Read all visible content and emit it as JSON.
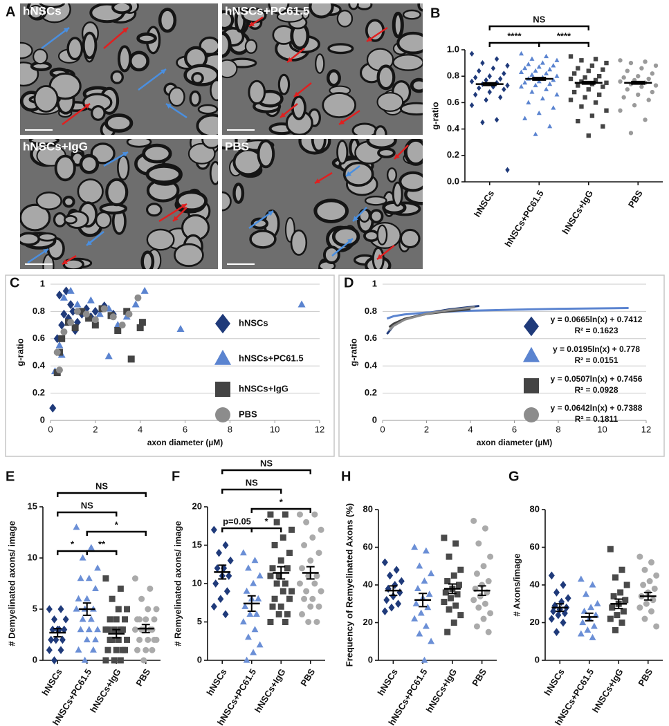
{
  "panel_a": {
    "label": "A",
    "images": [
      {
        "label": "hNSCs"
      },
      {
        "label": "hNSCs+PC61.5"
      },
      {
        "label": "hNSCs+IgG"
      },
      {
        "label": "PBS"
      }
    ]
  },
  "chart_data": [
    {
      "type": "dotplot",
      "panel": "B",
      "ylabel": "g-ratio",
      "ylim": [
        0,
        1.0
      ],
      "yticks": [
        {
          "value": 0,
          "label": "0.0"
        },
        0.2,
        0.4,
        0.6,
        0.8,
        {
          "value": 1.0,
          "label": "1.0"
        }
      ],
      "groups": [
        {
          "name": "hNSCs",
          "color": "#1f3a7a",
          "marker": "diamond",
          "mean": 0.74,
          "sem": 0.01,
          "values": [
            0.97,
            0.93,
            0.9,
            0.88,
            0.86,
            0.84,
            0.82,
            0.8,
            0.79,
            0.78,
            0.77,
            0.76,
            0.75,
            0.74,
            0.73,
            0.72,
            0.71,
            0.7,
            0.68,
            0.66,
            0.64,
            0.62,
            0.58,
            0.47,
            0.45,
            0.09
          ]
        },
        {
          "name": "hNSCs+PC61.5",
          "color": "#5b84d0",
          "marker": "triangle",
          "mean": 0.78,
          "sem": 0.01,
          "values": [
            0.97,
            0.95,
            0.93,
            0.92,
            0.9,
            0.89,
            0.88,
            0.87,
            0.86,
            0.85,
            0.84,
            0.83,
            0.82,
            0.81,
            0.8,
            0.79,
            0.78,
            0.77,
            0.76,
            0.75,
            0.74,
            0.73,
            0.72,
            0.7,
            0.68,
            0.66,
            0.63,
            0.6,
            0.56,
            0.52,
            0.48,
            0.42,
            0.36
          ]
        },
        {
          "name": "hNSCs+IgG",
          "color": "#444444",
          "marker": "square",
          "mean": 0.75,
          "sem": 0.01,
          "values": [
            0.95,
            0.93,
            0.92,
            0.9,
            0.88,
            0.86,
            0.85,
            0.84,
            0.82,
            0.8,
            0.79,
            0.78,
            0.77,
            0.76,
            0.75,
            0.74,
            0.73,
            0.72,
            0.7,
            0.68,
            0.66,
            0.64,
            0.62,
            0.6,
            0.57,
            0.54,
            0.5,
            0.46,
            0.42,
            0.35
          ]
        },
        {
          "name": "PBS",
          "color": "#9a9a9a",
          "marker": "circle",
          "mean": 0.75,
          "sem": 0.01,
          "values": [
            0.92,
            0.91,
            0.9,
            0.88,
            0.86,
            0.84,
            0.82,
            0.8,
            0.79,
            0.78,
            0.77,
            0.76,
            0.75,
            0.74,
            0.73,
            0.72,
            0.7,
            0.68,
            0.66,
            0.64,
            0.62,
            0.58,
            0.54,
            0.47,
            0.37
          ]
        }
      ],
      "brackets": [
        {
          "from": "hNSCs",
          "to": "hNSCs+PC61.5",
          "label": "****"
        },
        {
          "from": "hNSCs+PC61.5",
          "to": "hNSCs+IgG",
          "label": "****"
        },
        {
          "from": "hNSCs",
          "to": "hNSCs+IgG",
          "label": "NS"
        }
      ]
    },
    {
      "type": "scatter",
      "panel": "C",
      "xlabel": "axon diameter (µM)",
      "ylabel": "g-ratio",
      "xlim": [
        0,
        12
      ],
      "xticks": [
        0,
        2,
        4,
        6,
        8,
        10,
        12
      ],
      "ylim": [
        0,
        1
      ],
      "yticks": [
        0,
        0.2,
        0.4,
        0.6,
        0.8,
        1
      ],
      "grid": true,
      "series": [
        {
          "name": "hNSCs",
          "color": "#1f3a7a",
          "marker": "diamond",
          "x": [
            0.1,
            0.3,
            0.5,
            0.6,
            0.8,
            0.9,
            1.0,
            1.2,
            1.4,
            1.6,
            1.8,
            2.0,
            2.4,
            2.8,
            0.4,
            0.7,
            1.1
          ],
          "values": [
            0.09,
            0.6,
            0.7,
            0.78,
            0.75,
            0.85,
            0.8,
            0.72,
            0.78,
            0.82,
            0.76,
            0.8,
            0.84,
            0.78,
            0.92,
            0.95,
            0.66
          ]
        },
        {
          "name": "hNSCs+PC61.5",
          "color": "#5b84d0",
          "marker": "triangle",
          "x": [
            0.2,
            0.4,
            0.6,
            0.9,
            1.2,
            1.5,
            1.8,
            2.2,
            2.6,
            3.0,
            3.4,
            3.8,
            4.2,
            5.8,
            11.2,
            0.5,
            2.6
          ],
          "values": [
            0.36,
            0.55,
            0.9,
            0.95,
            0.85,
            0.8,
            0.88,
            0.78,
            0.82,
            0.7,
            0.76,
            0.85,
            0.95,
            0.67,
            0.85,
            0.48,
            0.47
          ]
        },
        {
          "name": "hNSCs+IgG",
          "color": "#444444",
          "marker": "square",
          "x": [
            0.3,
            0.5,
            0.8,
            1.1,
            1.4,
            1.7,
            2.0,
            2.3,
            2.7,
            3.0,
            3.4,
            3.6,
            4.0,
            4.1,
            0.4
          ],
          "values": [
            0.35,
            0.6,
            0.72,
            0.68,
            0.8,
            0.75,
            0.7,
            0.82,
            0.77,
            0.66,
            0.8,
            0.45,
            0.68,
            0.72,
            0.5
          ]
        },
        {
          "name": "PBS",
          "color": "#8c8c8c",
          "marker": "circle",
          "x": [
            0.3,
            0.6,
            0.9,
            1.2,
            1.6,
            2.0,
            2.4,
            2.8,
            3.2,
            3.5,
            3.9,
            0.4
          ],
          "values": [
            0.5,
            0.65,
            0.72,
            0.8,
            0.78,
            0.74,
            0.82,
            0.76,
            0.7,
            0.78,
            0.9,
            0.37
          ]
        }
      ]
    },
    {
      "type": "line",
      "panel": "D",
      "xlabel": "axon diameter (µM)",
      "ylabel": "g-ratio",
      "xlim": [
        0,
        12
      ],
      "xticks": [
        0,
        2,
        4,
        6,
        8,
        10,
        12
      ],
      "ylim": [
        0,
        1
      ],
      "yticks": [
        0,
        0.2,
        0.4,
        0.6,
        0.8,
        1
      ],
      "grid": true,
      "series": [
        {
          "color": "#1f3a7a",
          "marker": "diamond",
          "equation": "y = 0.0665ln(x) + 0.7412",
          "r2": "R² = 0.1623",
          "x": [
            0.2,
            0.5,
            1,
            2,
            3,
            4.4
          ],
          "values": [
            0.634,
            0.695,
            0.741,
            0.787,
            0.814,
            0.84
          ]
        },
        {
          "color": "#5b84d0",
          "marker": "triangle",
          "equation": "y = 0.0195ln(x) + 0.778",
          "r2": "R² = 0.0151",
          "x": [
            0.2,
            0.5,
            1,
            2,
            4,
            6,
            8,
            11.2
          ],
          "values": [
            0.747,
            0.765,
            0.778,
            0.792,
            0.805,
            0.813,
            0.819,
            0.825
          ]
        },
        {
          "color": "#444444",
          "marker": "square",
          "equation": "y = 0.0507ln(x) + 0.7456",
          "r2": "R² = 0.0928",
          "x": [
            0.3,
            0.5,
            1,
            2,
            3,
            4
          ],
          "values": [
            0.685,
            0.71,
            0.746,
            0.781,
            0.801,
            0.816
          ]
        },
        {
          "color": "#8c8c8c",
          "marker": "circle",
          "equation": "y = 0.0642ln(x) + 0.7388",
          "r2": "R² = 0.1811",
          "x": [
            0.3,
            0.5,
            1,
            2,
            3,
            4.2
          ],
          "values": [
            0.662,
            0.694,
            0.739,
            0.783,
            0.809,
            0.831
          ]
        }
      ]
    },
    {
      "type": "dotplot",
      "panel": "E",
      "ylabel": "# Demyelinated axons/ image",
      "ylim": [
        0,
        15
      ],
      "yticks": [
        0,
        5,
        10,
        15
      ],
      "groups": [
        {
          "name": "hNSCs",
          "color": "#1f3a7a",
          "marker": "diamond",
          "mean": 2.7,
          "sem": 0.4,
          "values": [
            5,
            5,
            4,
            4,
            3,
            3,
            3,
            3,
            2,
            2,
            2,
            1,
            1,
            0
          ]
        },
        {
          "name": "hNSCs+PC61.5",
          "color": "#6b8fd6",
          "marker": "triangle",
          "mean": 5.0,
          "sem": 0.6,
          "values": [
            13,
            11,
            10,
            9,
            8,
            8,
            7,
            6,
            6,
            5,
            5,
            5,
            4,
            4,
            3,
            3,
            3,
            2,
            2,
            1,
            1,
            0
          ]
        },
        {
          "name": "hNSCs+IgG",
          "color": "#4a4a4a",
          "marker": "square",
          "mean": 2.6,
          "sem": 0.4,
          "values": [
            8,
            7,
            6,
            5,
            5,
            4,
            4,
            4,
            3,
            3,
            3,
            3,
            3,
            2,
            2,
            2,
            2,
            1,
            1,
            1,
            1,
            0,
            0,
            0
          ]
        },
        {
          "name": "PBS",
          "color": "#aaaaaa",
          "marker": "circle",
          "mean": 3.1,
          "sem": 0.4,
          "values": [
            8,
            7,
            6,
            5,
            5,
            4,
            4,
            4,
            4,
            3,
            3,
            3,
            3,
            3,
            2,
            2,
            2,
            2,
            1,
            1,
            1,
            0
          ]
        }
      ],
      "brackets": [
        {
          "from": "hNSCs",
          "to": "hNSCs+PC61.5",
          "label": "*"
        },
        {
          "from": "hNSCs+PC61.5",
          "to": "hNSCs+IgG",
          "label": "**"
        },
        {
          "from": "hNSCs+PC61.5",
          "to": "PBS",
          "label": "*"
        },
        {
          "from": "hNSCs",
          "to": "hNSCs+IgG",
          "label": "NS"
        },
        {
          "from": "hNSCs",
          "to": "PBS",
          "label": "NS"
        }
      ]
    },
    {
      "type": "dotplot",
      "panel": "F",
      "ylabel": "# Remyelinated axons/ image",
      "ylim": [
        0,
        20
      ],
      "yticks": [
        0,
        5,
        10,
        15,
        20
      ],
      "groups": [
        {
          "name": "hNSCs",
          "color": "#1f3a7a",
          "marker": "diamond",
          "mean": 11.5,
          "sem": 0.9,
          "values": [
            17,
            15,
            14,
            13,
            12,
            12,
            11,
            11,
            10,
            9,
            8,
            7,
            6
          ]
        },
        {
          "name": "hNSCs+PC61.5",
          "color": "#6b8fd6",
          "marker": "triangle",
          "mean": 7.4,
          "sem": 1.0,
          "values": [
            14,
            13,
            12,
            11,
            10,
            9,
            8,
            8,
            7,
            6,
            6,
            5,
            4,
            3,
            2,
            1,
            0
          ]
        },
        {
          "name": "hNSCs+IgG",
          "color": "#4a4a4a",
          "marker": "square",
          "mean": 11.4,
          "sem": 0.8,
          "values": [
            19,
            19,
            18,
            17,
            16,
            15,
            14,
            13,
            12,
            12,
            11,
            11,
            10,
            10,
            9,
            9,
            8,
            8,
            7,
            7,
            6,
            6,
            5,
            5
          ]
        },
        {
          "name": "PBS",
          "color": "#aaaaaa",
          "marker": "circle",
          "mean": 11.4,
          "sem": 0.8,
          "values": [
            19,
            19,
            18,
            17,
            16,
            15,
            14,
            13,
            12,
            11,
            11,
            10,
            10,
            9,
            9,
            8,
            8,
            7,
            7,
            6,
            5,
            5
          ]
        }
      ],
      "brackets": [
        {
          "from": "hNSCs",
          "to": "hNSCs+PC61.5",
          "label": "p=0.05"
        },
        {
          "from": "hNSCs+PC61.5",
          "to": "hNSCs+IgG",
          "label": "*"
        },
        {
          "from": "hNSCs+PC61.5",
          "to": "PBS",
          "label": "*"
        },
        {
          "from": "hNSCs",
          "to": "hNSCs+IgG",
          "label": "NS"
        },
        {
          "from": "hNSCs",
          "to": "PBS",
          "label": "NS"
        }
      ]
    },
    {
      "type": "dotplot",
      "panel": "H",
      "ylabel": "Frequency of Remyelinated Axons (%)",
      "ylim": [
        0,
        80
      ],
      "yticks": [
        0,
        20,
        40,
        60,
        80
      ],
      "groups": [
        {
          "name": "hNSCs",
          "color": "#1f3a7a",
          "marker": "diamond",
          "mean": 37,
          "sem": 2.5,
          "values": [
            52,
            48,
            45,
            42,
            40,
            38,
            36,
            34,
            32,
            30,
            28,
            26
          ]
        },
        {
          "name": "hNSCs+PC61.5",
          "color": "#6b8fd6",
          "marker": "triangle",
          "mean": 32,
          "sem": 3.5,
          "values": [
            60,
            58,
            50,
            46,
            42,
            38,
            35,
            33,
            30,
            28,
            25,
            22,
            18,
            14,
            10,
            0
          ]
        },
        {
          "name": "hNSCs+IgG",
          "color": "#4a4a4a",
          "marker": "square",
          "mean": 38,
          "sem": 2.5,
          "values": [
            65,
            62,
            55,
            48,
            45,
            42,
            40,
            38,
            36,
            35,
            33,
            31,
            29,
            27,
            24,
            20,
            15
          ]
        },
        {
          "name": "PBS",
          "color": "#aaaaaa",
          "marker": "circle",
          "mean": 37,
          "sem": 2.5,
          "values": [
            74,
            70,
            62,
            55,
            50,
            46,
            42,
            40,
            38,
            36,
            34,
            32,
            30,
            28,
            25,
            22,
            18,
            15
          ]
        }
      ]
    },
    {
      "type": "dotplot",
      "panel": "G",
      "ylabel": "# Axons/image",
      "ylim": [
        0,
        80
      ],
      "yticks": [
        0,
        20,
        40,
        60,
        80
      ],
      "groups": [
        {
          "name": "hNSCs",
          "color": "#1f3a7a",
          "marker": "diamond",
          "mean": 28,
          "sem": 2,
          "values": [
            45,
            40,
            36,
            33,
            31,
            29,
            28,
            27,
            26,
            25,
            24,
            22,
            20,
            15
          ]
        },
        {
          "name": "hNSCs+PC61.5",
          "color": "#6b8fd6",
          "marker": "triangle",
          "mean": 23,
          "sem": 2,
          "values": [
            43,
            40,
            35,
            30,
            28,
            26,
            24,
            22,
            20,
            18,
            16,
            14,
            12
          ]
        },
        {
          "name": "hNSCs+IgG",
          "color": "#4a4a4a",
          "marker": "square",
          "mean": 30,
          "sem": 2.5,
          "values": [
            59,
            48,
            44,
            40,
            36,
            34,
            32,
            30,
            28,
            26,
            24,
            22,
            20,
            16
          ]
        },
        {
          "name": "PBS",
          "color": "#aaaaaa",
          "marker": "circle",
          "mean": 34,
          "sem": 2,
          "values": [
            55,
            52,
            48,
            45,
            42,
            40,
            38,
            36,
            34,
            32,
            30,
            28,
            26,
            22,
            18
          ]
        }
      ]
    }
  ]
}
